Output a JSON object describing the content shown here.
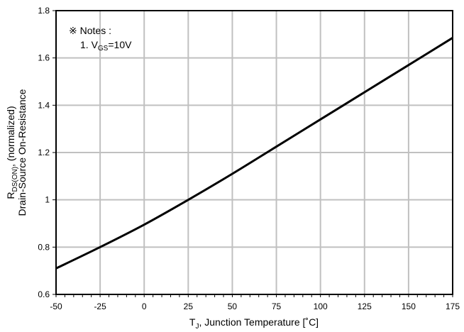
{
  "chart_data": {
    "type": "line",
    "title": "",
    "xlabel": {
      "base": "T",
      "sub": "J",
      "rest": ", Junction Temperature [˚C]"
    },
    "ylabel": {
      "line1_base": "R",
      "line1_sub": "DS(ON)",
      "line1_rest": ", (normalized)",
      "line2": "Drain-Source On-Resistance"
    },
    "xlim": [
      -50,
      175
    ],
    "ylim": [
      0.6,
      1.8
    ],
    "x_ticks": [
      -50,
      -25,
      0,
      25,
      50,
      75,
      100,
      125,
      150,
      175
    ],
    "y_ticks": [
      0.6,
      0.8,
      1,
      1.2,
      1.4,
      1.6,
      1.8
    ],
    "x_tick_labels": [
      "-50",
      "-25",
      "0",
      "25",
      "50",
      "75",
      "100",
      "125",
      "150",
      "175"
    ],
    "y_tick_labels": [
      "0.6",
      "0.8",
      "1",
      "1.2",
      "1.4",
      "1.6",
      "1.8"
    ],
    "grid": true,
    "series": [
      {
        "x": [
          -50,
          -25,
          0,
          25,
          50,
          75,
          100,
          125,
          150,
          175
        ],
        "y": [
          0.71,
          0.8,
          0.895,
          1.0,
          1.11,
          1.225,
          1.34,
          1.455,
          1.57,
          1.685
        ],
        "color": "#000000"
      }
    ],
    "annotations": {
      "notes_title": "※ Notes :",
      "note1_prefix": "1. V",
      "note1_sub": "GS",
      "note1_rest": "=10V"
    }
  }
}
